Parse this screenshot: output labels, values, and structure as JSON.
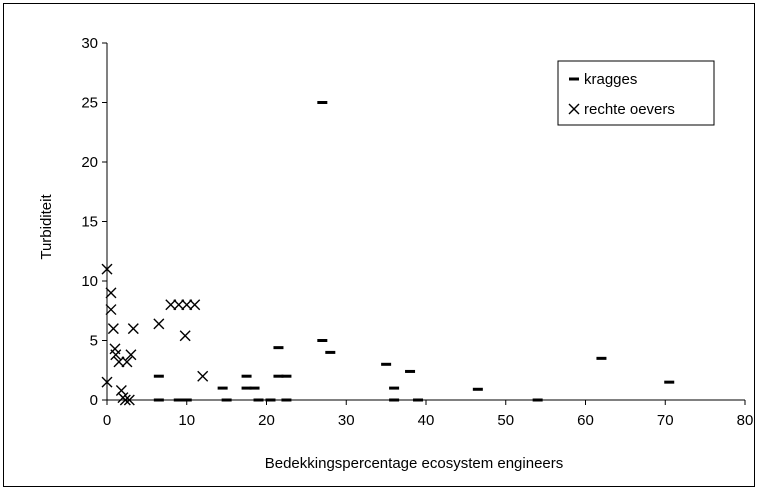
{
  "chart_data": {
    "type": "scatter",
    "title": "",
    "xlabel": "Bedekkingspercentage ecosystem engineers",
    "ylabel": "Turbiditeit",
    "xlim": [
      0,
      80
    ],
    "ylim": [
      0,
      30
    ],
    "x_ticks": [
      "0",
      "10",
      "20",
      "30",
      "40",
      "50",
      "60",
      "70",
      "80"
    ],
    "y_ticks": [
      "0",
      "5",
      "10",
      "15",
      "20",
      "25",
      "30"
    ],
    "grid": false,
    "legend_position": "top-right",
    "series": [
      {
        "name": "kragges",
        "marker": "dash",
        "color": "#000000",
        "points": [
          [
            6.5,
            2
          ],
          [
            6.5,
            0
          ],
          [
            9,
            0
          ],
          [
            10,
            0
          ],
          [
            14.5,
            1
          ],
          [
            15,
            0
          ],
          [
            17.5,
            2
          ],
          [
            17.5,
            1
          ],
          [
            18.5,
            1
          ],
          [
            19,
            0
          ],
          [
            20.5,
            0
          ],
          [
            21.5,
            4.4
          ],
          [
            21.5,
            2
          ],
          [
            22.5,
            2
          ],
          [
            22.5,
            0
          ],
          [
            27,
            25
          ],
          [
            27,
            5
          ],
          [
            28,
            4
          ],
          [
            35,
            3
          ],
          [
            36,
            1
          ],
          [
            36,
            0
          ],
          [
            38,
            2.4
          ],
          [
            39,
            0
          ],
          [
            46.5,
            0.9
          ],
          [
            54,
            0
          ],
          [
            62,
            3.5
          ],
          [
            70.5,
            1.5
          ]
        ]
      },
      {
        "name": "rechte oevers",
        "marker": "x",
        "color": "#000000",
        "points": [
          [
            0,
            11
          ],
          [
            0,
            1.5
          ],
          [
            0.5,
            9
          ],
          [
            0.5,
            7.6
          ],
          [
            0.8,
            6
          ],
          [
            1,
            4.3
          ],
          [
            1.1,
            3.8
          ],
          [
            1.5,
            3.2
          ],
          [
            1.8,
            0.8
          ],
          [
            2,
            0.2
          ],
          [
            2.3,
            0
          ],
          [
            2.5,
            3.2
          ],
          [
            2.8,
            0
          ],
          [
            3,
            3.8
          ],
          [
            3.3,
            6
          ],
          [
            6.5,
            6.4
          ],
          [
            8,
            8
          ],
          [
            9,
            8
          ],
          [
            10,
            8
          ],
          [
            11,
            8
          ],
          [
            9.8,
            5.4
          ],
          [
            12,
            2
          ]
        ]
      }
    ]
  }
}
